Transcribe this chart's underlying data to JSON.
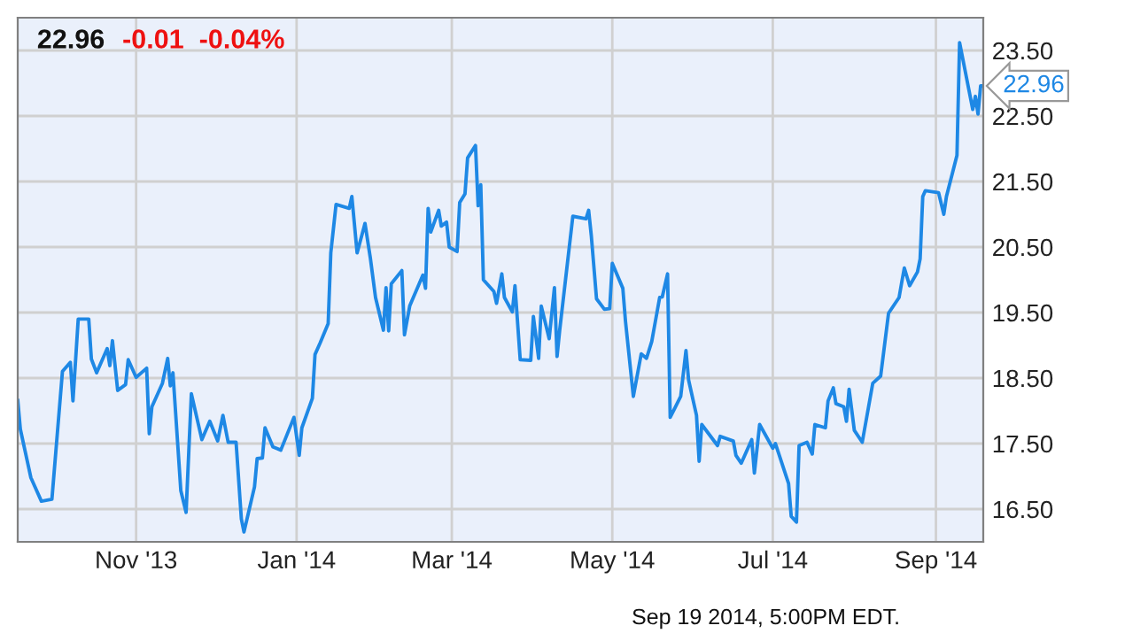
{
  "chart_data": {
    "type": "line",
    "title": "22.96",
    "subtitle": "-0.01  -0.04%",
    "annotations": [
      {
        "text": "22.96",
        "x": "2014-09-19",
        "y": 22.96
      },
      "Sep 19 2014, 5:00PM EDT."
    ],
    "x": [
      "2013-09-17",
      "2013-09-18",
      "2013-09-22",
      "2013-09-26",
      "2013-09-30",
      "2013-10-04",
      "2013-10-07",
      "2013-10-08",
      "2013-10-10",
      "2013-10-14",
      "2013-10-15",
      "2013-10-17",
      "2013-10-21",
      "2013-10-22",
      "2013-10-23",
      "2013-10-25",
      "2013-10-28",
      "2013-10-29",
      "2013-11-01",
      "2013-11-05",
      "2013-11-06",
      "2013-11-07",
      "2013-11-11",
      "2013-11-13",
      "2013-11-14",
      "2013-11-15",
      "2013-11-18",
      "2013-11-20",
      "2013-11-22",
      "2013-11-26",
      "2013-11-29",
      "2013-12-02",
      "2013-12-04",
      "2013-12-06",
      "2013-12-09",
      "2013-12-11",
      "2013-12-12",
      "2013-12-16",
      "2013-12-17",
      "2013-12-19",
      "2013-12-20",
      "2013-12-23",
      "2013-12-26",
      "2013-12-31",
      "2014-01-02",
      "2014-01-03",
      "2014-01-07",
      "2014-01-08",
      "2014-01-10",
      "2014-01-13",
      "2014-01-14",
      "2014-01-16",
      "2014-01-21",
      "2014-01-22",
      "2014-01-24",
      "2014-01-27",
      "2014-01-29",
      "2014-01-31",
      "2014-02-03",
      "2014-02-04",
      "2014-02-05",
      "2014-02-06",
      "2014-02-10",
      "2014-02-11",
      "2014-02-13",
      "2014-02-18",
      "2014-02-19",
      "2014-02-20",
      "2014-02-21",
      "2014-02-24",
      "2014-02-25",
      "2014-02-27",
      "2014-02-28",
      "2014-03-03",
      "2014-03-04",
      "2014-03-06",
      "2014-03-07",
      "2014-03-10",
      "2014-03-11",
      "2014-03-12",
      "2014-03-13",
      "2014-03-17",
      "2014-03-18",
      "2014-03-20",
      "2014-03-21",
      "2014-03-24",
      "2014-03-25",
      "2014-03-27",
      "2014-03-31",
      "2014-04-01",
      "2014-04-03",
      "2014-04-04",
      "2014-04-07",
      "2014-04-09",
      "2014-04-10",
      "2014-04-11",
      "2014-04-16",
      "2014-04-21",
      "2014-04-22",
      "2014-04-23",
      "2014-04-25",
      "2014-04-28",
      "2014-04-30",
      "2014-05-01",
      "2014-05-05",
      "2014-05-06",
      "2014-05-09",
      "2014-05-12",
      "2014-05-14",
      "2014-05-16",
      "2014-05-19",
      "2014-05-20",
      "2014-05-22",
      "2014-05-23",
      "2014-05-27",
      "2014-05-29",
      "2014-05-30",
      "2014-06-02",
      "2014-06-03",
      "2014-06-04",
      "2014-06-10",
      "2014-06-11",
      "2014-06-16",
      "2014-06-17",
      "2014-06-19",
      "2014-06-23",
      "2014-06-24",
      "2014-06-26",
      "2014-07-01",
      "2014-07-02",
      "2014-07-07",
      "2014-07-08",
      "2014-07-10",
      "2014-07-11",
      "2014-07-14",
      "2014-07-16",
      "2014-07-17",
      "2014-07-21",
      "2014-07-22",
      "2014-07-24",
      "2014-07-25",
      "2014-07-28",
      "2014-07-29",
      "2014-07-30",
      "2014-08-01",
      "2014-08-04",
      "2014-08-08",
      "2014-08-11",
      "2014-08-14",
      "2014-08-18",
      "2014-08-19",
      "2014-08-20",
      "2014-08-22",
      "2014-08-25",
      "2014-08-26",
      "2014-08-27",
      "2014-08-28",
      "2014-09-02",
      "2014-09-04",
      "2014-09-05",
      "2014-09-09",
      "2014-09-10",
      "2014-09-15",
      "2014-09-16",
      "2014-09-17",
      "2014-09-18",
      "2014-09-19"
    ],
    "values": [
      18.17,
      17.72,
      16.98,
      16.62,
      16.65,
      18.6,
      18.74,
      18.15,
      19.4,
      19.4,
      18.79,
      18.58,
      18.95,
      18.69,
      19.07,
      18.31,
      18.4,
      18.78,
      18.51,
      18.65,
      17.65,
      18.06,
      18.42,
      18.8,
      18.38,
      18.58,
      16.78,
      16.45,
      18.26,
      17.56,
      17.84,
      17.54,
      17.93,
      17.52,
      17.52,
      16.35,
      16.15,
      16.84,
      17.27,
      17.28,
      17.74,
      17.45,
      17.4,
      17.9,
      17.32,
      17.74,
      18.19,
      18.86,
      19.04,
      19.33,
      20.41,
      21.15,
      21.09,
      21.27,
      20.41,
      20.86,
      20.34,
      19.73,
      19.23,
      19.88,
      19.22,
      19.94,
      20.14,
      19.16,
      19.6,
      20.07,
      19.87,
      21.09,
      20.73,
      21.06,
      20.82,
      20.88,
      20.5,
      20.43,
      21.18,
      21.31,
      21.86,
      22.05,
      21.13,
      21.45,
      20.0,
      19.82,
      19.64,
      20.09,
      19.73,
      19.51,
      19.91,
      18.78,
      18.77,
      19.44,
      18.8,
      19.6,
      19.1,
      19.88,
      18.83,
      19.23,
      20.97,
      20.93,
      21.06,
      20.68,
      19.71,
      19.55,
      19.56,
      20.25,
      19.87,
      19.37,
      18.22,
      18.87,
      18.8,
      19.06,
      19.73,
      19.74,
      20.09,
      17.9,
      18.22,
      18.92,
      18.47,
      17.93,
      17.23,
      17.79,
      17.47,
      17.61,
      17.54,
      17.32,
      17.2,
      17.56,
      17.05,
      17.79,
      17.43,
      17.5,
      16.89,
      16.39,
      16.3,
      17.47,
      17.52,
      17.34,
      17.79,
      17.74,
      18.15,
      18.35,
      18.11,
      18.06,
      17.84,
      18.33,
      17.7,
      17.52,
      18.42,
      18.53,
      19.49,
      19.73,
      19.96,
      20.18,
      19.91,
      20.12,
      20.32,
      21.27,
      21.36,
      21.33,
      21.0,
      21.27,
      21.9,
      23.62,
      22.6,
      22.8,
      22.53,
      22.96,
      22.96
    ],
    "color": "#1e88e5",
    "xlim": [
      "2013-09-17",
      "2014-09-19"
    ],
    "xticks": [
      {
        "value": "2013-11-01",
        "label": "Nov '13"
      },
      {
        "value": "2014-01-01",
        "label": "Jan '14"
      },
      {
        "value": "2014-03-01",
        "label": "Mar '14"
      },
      {
        "value": "2014-05-01",
        "label": "May '14"
      },
      {
        "value": "2014-07-01",
        "label": "Jul '14"
      },
      {
        "value": "2014-09-01",
        "label": "Sep '14"
      }
    ],
    "ylim": [
      16.0,
      24.0
    ],
    "yticks": [
      {
        "value": 16.5,
        "label": "16.50"
      },
      {
        "value": 17.5,
        "label": "17.50"
      },
      {
        "value": 18.5,
        "label": "18.50"
      },
      {
        "value": 19.5,
        "label": "19.50"
      },
      {
        "value": 20.5,
        "label": "20.50"
      },
      {
        "value": 21.5,
        "label": "21.50"
      },
      {
        "value": 22.5,
        "label": "22.50"
      },
      {
        "value": 23.5,
        "label": "23.50"
      }
    ],
    "grid": true
  }
}
